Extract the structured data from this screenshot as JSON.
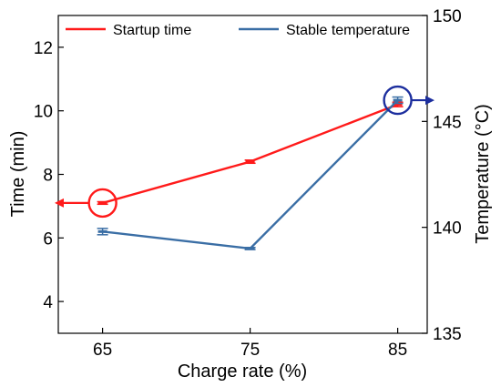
{
  "chart_data": {
    "type": "line",
    "xlabel": "Charge rate (%)",
    "ylabel_left": "Time (min)",
    "ylabel_right": "Temperature (°C)",
    "x": [
      65,
      75,
      85
    ],
    "xlim": [
      62,
      87
    ],
    "ylim_left": [
      3,
      13
    ],
    "ylim_right": [
      135,
      150
    ],
    "xticks": [
      65,
      75,
      85
    ],
    "yticks_left": [
      4,
      6,
      8,
      10,
      12
    ],
    "yticks_right": [
      135,
      140,
      145,
      150
    ],
    "grid": false,
    "legend_position": "top",
    "series": [
      {
        "name": "Startup time",
        "axis": "left",
        "color": "#ff1a1a",
        "values": [
          7.1,
          8.4,
          10.2
        ],
        "errors": [
          0.04,
          0.05,
          0.07
        ],
        "indicator_point": 0,
        "indicator_arrow": "left"
      },
      {
        "name": "Stable temperature",
        "axis": "right",
        "color": "#3a6ea5",
        "values": [
          139.8,
          139.0,
          146.0
        ],
        "errors": [
          0.15,
          0.05,
          0.15
        ],
        "indicator_point": 2,
        "indicator_arrow": "right",
        "indicator_color": "#1c2e9e"
      }
    ]
  }
}
